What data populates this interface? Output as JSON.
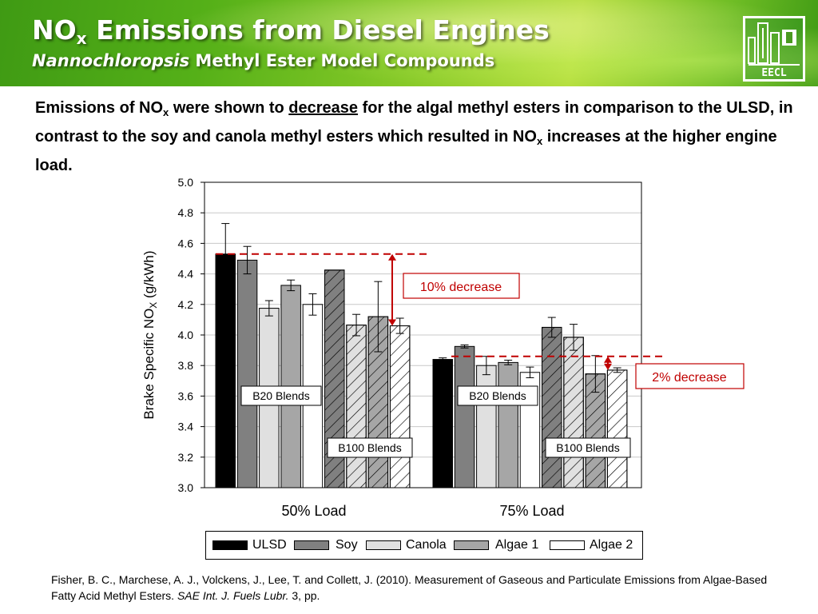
{
  "banner": {
    "title_main": "NO",
    "title_sub": "x",
    "title_rest": " Emissions from Diesel Engines",
    "subtitle_italic": "Nannochloropsis",
    "subtitle_rest": " Methyl Ester Model Compounds",
    "logo_text": "EECL"
  },
  "body": {
    "p1": "Emissions of NO",
    "sub1": "x",
    "p2": " were shown to ",
    "underlined": "decrease",
    "p3": " for the algal methyl esters in comparison to the ULSD, in contrast to the soy and canola methyl esters which resulted in NO",
    "sub2": "x",
    "p4": " increases at the higher engine load."
  },
  "chart_data": {
    "type": "bar",
    "categories": [
      "50% Load",
      "75% Load"
    ],
    "ylabel_main": "Brake Specific NO",
    "ylabel_sub": "X",
    "ylabel_unit": " (g/kWh)",
    "ylim": [
      3.0,
      5.0
    ],
    "yticks": [
      "3.0",
      "3.2",
      "3.4",
      "3.6",
      "3.8",
      "4.0",
      "4.2",
      "4.4",
      "4.6",
      "4.8",
      "5.0"
    ],
    "grid": true,
    "legend_position": "bottom",
    "group_labels": [
      "B20 Blends",
      "B100 Blends"
    ],
    "series": [
      {
        "name": "ULSD",
        "fill": "#000000",
        "hatched": false,
        "values": [
          4.53,
          3.84
        ],
        "errors": [
          0.2,
          0.01
        ]
      },
      {
        "name": "Soy",
        "fill": "#808080",
        "hatched": false,
        "values": [
          4.49,
          3.925
        ],
        "errors": [
          0.09,
          0.01
        ]
      },
      {
        "name": "Canola",
        "fill": "#e0e0e0",
        "hatched": false,
        "values": [
          4.175,
          3.8
        ],
        "errors": [
          0.05,
          0.06
        ]
      },
      {
        "name": "Algae 1",
        "fill": "#a6a6a6",
        "hatched": false,
        "values": [
          4.325,
          3.82
        ],
        "errors": [
          0.035,
          0.015
        ]
      },
      {
        "name": "Algae 2",
        "fill": "#ffffff",
        "hatched": false,
        "values": [
          4.2,
          3.755
        ],
        "errors": [
          0.07,
          0.035
        ]
      },
      {
        "name": "Soy",
        "fill": "#808080",
        "hatched": true,
        "values": [
          4.425,
          4.05
        ],
        "errors": [
          0.0,
          0.065
        ]
      },
      {
        "name": "Canola",
        "fill": "#e0e0e0",
        "hatched": true,
        "values": [
          4.065,
          3.985
        ],
        "errors": [
          0.07,
          0.085
        ]
      },
      {
        "name": "Algae 1",
        "fill": "#a6a6a6",
        "hatched": true,
        "values": [
          4.12,
          3.745
        ],
        "errors": [
          0.23,
          0.12
        ]
      },
      {
        "name": "Algae 2",
        "fill": "#ffffff",
        "hatched": true,
        "values": [
          4.06,
          3.77
        ],
        "errors": [
          0.05,
          0.015
        ]
      }
    ],
    "annotations": [
      {
        "text": "10% decrease",
        "from": 4.53,
        "to": 4.06
      },
      {
        "text": "2% decrease",
        "from": 3.86,
        "to": 3.77
      }
    ],
    "annotation_color": "#c00000",
    "legend": [
      "ULSD",
      "Soy",
      "Canola",
      "Algae 1",
      "Algae 2"
    ],
    "legend_fills": [
      "#000000",
      "#808080",
      "#e0e0e0",
      "#a6a6a6",
      "#ffffff"
    ]
  },
  "citation": {
    "text1": "Fisher, B. C., Marchese, A. J., Volckens, J., Lee, T. and Collett, J. (2010).  Measurement of Gaseous and Particulate Emissions from Algae-Based Fatty Acid Methyl Esters. ",
    "journal": "SAE Int. J. Fuels Lubr.",
    "text2": " 3, pp."
  }
}
